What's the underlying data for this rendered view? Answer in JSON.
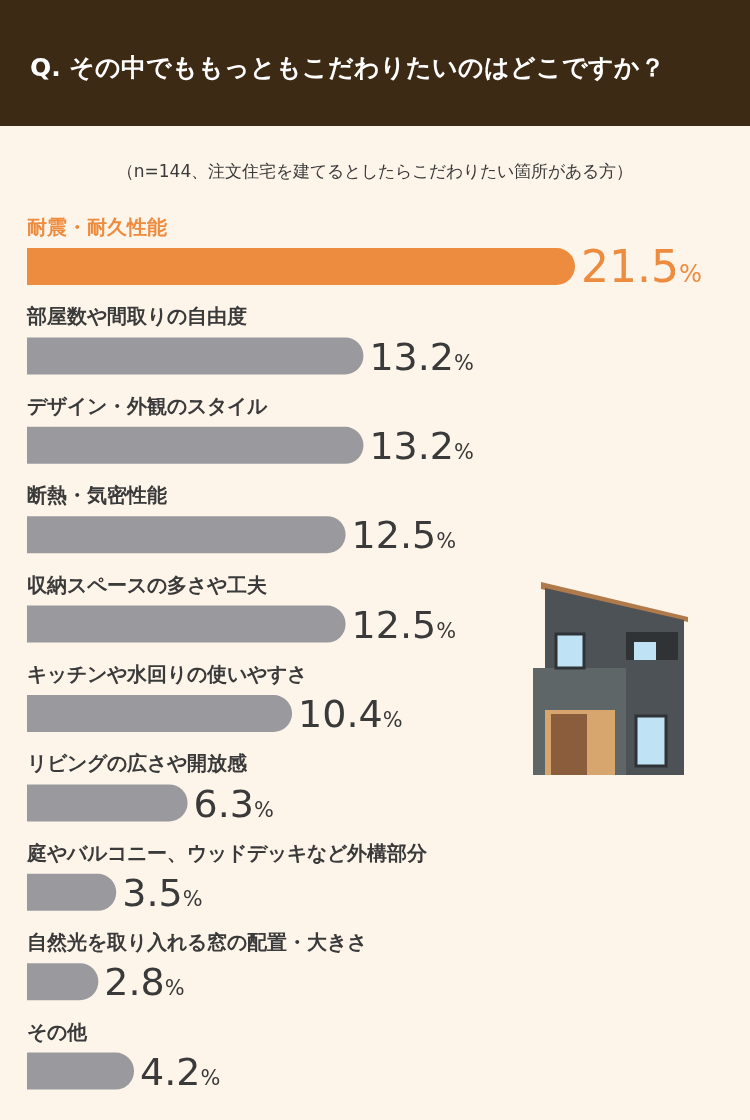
{
  "chart_data": {
    "type": "bar",
    "orientation": "horizontal",
    "title": "Q. その中でももっともこだわりたいのはどこですか？",
    "annotations": [
      "（n=144、注文住宅を建てるとしたらこだわりたい箇所がある方）"
    ],
    "categories": [
      "耐震・耐久性能",
      "部屋数や間取りの自由度",
      "デザイン・外観のスタイル",
      "断熱・気密性能",
      "収納スペースの多さや工夫",
      "キッチンや水回りの使いやすさ",
      "リビングの広さや開放感",
      "庭やバルコニー、ウッドデッキなど外構部分",
      "自然光を取り入れる窓の配置・大きさ",
      "その他"
    ],
    "values": [
      21.5,
      13.2,
      13.2,
      12.5,
      12.5,
      10.4,
      6.3,
      3.5,
      2.8,
      4.2
    ],
    "colors": [
      "#ed8c3e",
      "#9a9a9e",
      "#9a9a9e",
      "#9a9a9e",
      "#9a9a9e",
      "#9a9a9e",
      "#9a9a9e",
      "#9a9a9e",
      "#9a9a9e",
      "#9a9a9e"
    ],
    "value_labels": [
      "21.5%",
      "13.2%",
      "13.2%",
      "12.5%",
      "12.5%",
      "10.4%",
      "6.3%",
      "3.5%",
      "2.8%",
      "4.2%"
    ]
  }
}
